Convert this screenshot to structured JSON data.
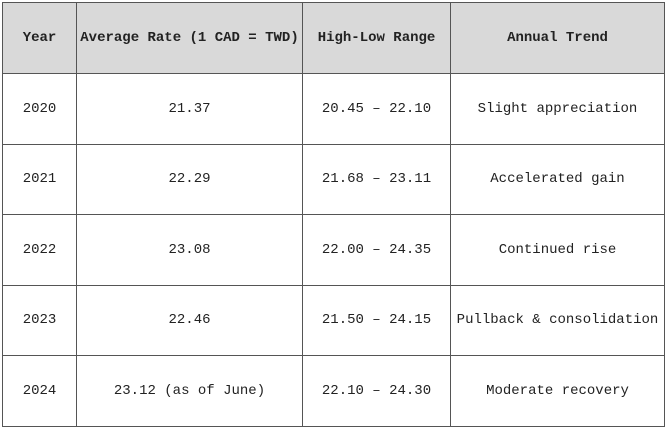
{
  "table": {
    "header": [
      "Year",
      "Average Rate (1 CAD = TWD)",
      "High-Low Range",
      "Annual Trend"
    ],
    "rows": [
      [
        "2020",
        "21.37",
        "20.45 – 22.10",
        "Slight appreciation"
      ],
      [
        "2021",
        "22.29",
        "21.68 – 23.11",
        "Accelerated gain"
      ],
      [
        "2022",
        "23.08",
        "22.00 – 24.35",
        "Continued rise"
      ],
      [
        "2023",
        "22.46",
        "21.50 – 24.15",
        "Pullback & consolidation"
      ],
      [
        "2024",
        "23.12 (as of June)",
        "22.10 – 24.30",
        "Moderate recovery"
      ]
    ]
  }
}
